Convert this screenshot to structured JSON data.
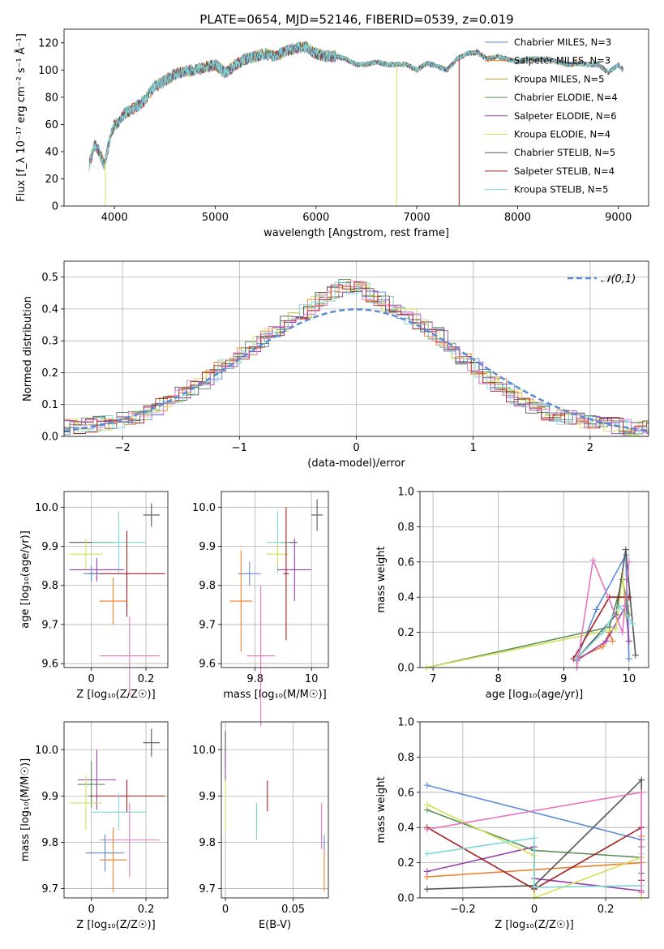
{
  "figure": {
    "title": "PLATE=0654, MJD=52146, FIBERID=0539, z=0.019"
  },
  "chart_data": [
    {
      "id": "spectrum",
      "type": "line",
      "title": "PLATE=0654, MJD=52146, FIBERID=0539, z=0.019",
      "xlabel": "wavelength [Angstrom, rest frame]",
      "ylabel": "Flux [f_λ 10⁻¹⁷ erg cm⁻² s⁻¹ Å⁻¹]",
      "xlim": [
        3500,
        9300
      ],
      "ylim": [
        0,
        130
      ],
      "xticks": [
        4000,
        5000,
        6000,
        7000,
        8000,
        9000
      ],
      "yticks": [
        0,
        20,
        40,
        60,
        80,
        100,
        120
      ],
      "grid": false,
      "legend_position": "right",
      "continuum": {
        "x": [
          3750,
          3800,
          3850,
          3900,
          3950,
          4000,
          4050,
          4100,
          4200,
          4300,
          4400,
          4500,
          4600,
          4700,
          4800,
          4900,
          5000,
          5100,
          5200,
          5300,
          5400,
          5500,
          5600,
          5700,
          5800,
          5900,
          6000,
          6100,
          6200,
          6300,
          6400,
          6500,
          6600,
          6700,
          6800,
          6900,
          7000,
          7100,
          7200,
          7300,
          7400,
          7500,
          7600,
          7700,
          7800,
          7900,
          8000,
          8100,
          8200,
          8300,
          8400,
          8500,
          8600,
          8700,
          8800,
          8900,
          9000,
          9050
        ],
        "y": [
          30,
          45,
          40,
          30,
          48,
          60,
          62,
          68,
          72,
          78,
          88,
          92,
          97,
          99,
          100,
          102,
          104,
          98,
          104,
          108,
          110,
          112,
          110,
          114,
          116,
          117,
          112,
          110,
          110,
          108,
          104,
          104,
          106,
          104,
          104,
          104,
          100,
          105,
          103,
          100,
          108,
          112,
          113,
          108,
          110,
          108,
          106,
          108,
          108,
          108,
          106,
          104,
          105,
          104,
          104,
          98,
          104,
          100
        ]
      },
      "series": [
        {
          "name": "Chabrier MILES, N_SSP=3",
          "color": "#5b8bd6"
        },
        {
          "name": "Salpeter MILES, N_SSP=3",
          "color": "#f07f2a"
        },
        {
          "name": "Kroupa MILES, N_SSP=5",
          "color": "#b8922e"
        },
        {
          "name": "Chabrier ELODIE, N_SSP=4",
          "color": "#5a8f5a"
        },
        {
          "name": "Salpeter ELODIE, N_SSP=6",
          "color": "#9b3fb0"
        },
        {
          "name": "Kroupa ELODIE, N_SSP=4",
          "color": "#d4e157"
        },
        {
          "name": "Chabrier STELIB, N_SSP=5",
          "color": "#555555"
        },
        {
          "name": "Salpeter STELIB, N_SSP=4",
          "color": "#a32020"
        },
        {
          "name": "Kroupa STELIB, N_SSP=5",
          "color": "#7fd6d6"
        }
      ],
      "model_cutoffs": [
        {
          "series": "Kroupa ELODIE, N_SSP=4",
          "x": 3910
        },
        {
          "series": "Kroupa ELODIE, N_SSP=4",
          "x": 6800
        },
        {
          "series": "Salpeter STELIB, N_SSP=4",
          "x": 7420
        }
      ]
    },
    {
      "id": "residuals",
      "type": "line",
      "xlabel": "(data-model)/error",
      "ylabel": "Normed distribution",
      "xlim": [
        -2.5,
        2.5
      ],
      "ylim": [
        0,
        0.55
      ],
      "xticks": [
        -2,
        -1,
        0,
        1,
        2
      ],
      "yticks": [
        0.0,
        0.1,
        0.2,
        0.3,
        0.4,
        0.5
      ],
      "grid": true,
      "legend_position": "top-right",
      "reference": {
        "name": "𝒩(0,1)",
        "color": "#5b8bd6",
        "mu": 0,
        "sigma": 1
      },
      "histogram_envelope": {
        "x": [
          -2.5,
          -2.3,
          -2.1,
          -1.9,
          -1.7,
          -1.5,
          -1.3,
          -1.1,
          -0.9,
          -0.7,
          -0.5,
          -0.3,
          -0.1,
          0.1,
          0.3,
          0.5,
          0.7,
          0.9,
          1.1,
          1.3,
          1.5,
          1.7,
          1.9,
          2.1,
          2.3,
          2.5
        ],
        "y": [
          0.03,
          0.035,
          0.045,
          0.06,
          0.09,
          0.13,
          0.17,
          0.23,
          0.28,
          0.33,
          0.38,
          0.43,
          0.48,
          0.45,
          0.41,
          0.37,
          0.32,
          0.25,
          0.19,
          0.14,
          0.09,
          0.065,
          0.05,
          0.04,
          0.03,
          0.025
        ]
      }
    },
    {
      "id": "age-vs-Z",
      "type": "scatter",
      "xlabel": "Z [log₁₀(Z/Z☉)]",
      "ylabel": "age  [log₁₀(age/yr)]",
      "xlim": [
        -0.1,
        0.28
      ],
      "ylim": [
        9.59,
        10.04
      ],
      "xticks": [
        0.0,
        0.2
      ],
      "yticks": [
        9.6,
        9.7,
        9.8,
        9.9,
        10.0
      ],
      "grid": true,
      "points": [
        {
          "color": "#555555",
          "x": 0.22,
          "y": 9.98,
          "xerr": 0.03,
          "yerr": 0.03
        },
        {
          "color": "#555555",
          "x": 0.0,
          "y": 9.91,
          "xerr": 0.08,
          "yerr": 0.0
        },
        {
          "color": "#7fd6d6",
          "x": 0.1,
          "y": 9.91,
          "xerr": 0.1,
          "yerr": 0.08
        },
        {
          "color": "#d4e157",
          "x": -0.02,
          "y": 9.88,
          "xerr": 0.06,
          "yerr": 0.04
        },
        {
          "color": "#9b3fb0",
          "x": 0.02,
          "y": 9.84,
          "xerr": 0.1,
          "yerr": 0.03
        },
        {
          "color": "#a32020",
          "x": 0.13,
          "y": 9.83,
          "xerr": 0.14,
          "yerr": 0.11
        },
        {
          "color": "#5b8bd6",
          "x": 0.0,
          "y": 9.83,
          "xerr": 0.03,
          "yerr": 0.02
        },
        {
          "color": "#f07f2a",
          "x": 0.08,
          "y": 9.76,
          "xerr": 0.05,
          "yerr": 0.06
        },
        {
          "color": "#e377c2",
          "x": 0.14,
          "y": 9.62,
          "xerr": 0.11,
          "yerr": 0.1
        }
      ]
    },
    {
      "id": "age-vs-mass",
      "type": "scatter",
      "xlabel": "mass [log₁₀(M/M☉)]",
      "ylabel": "",
      "xlim": [
        9.68,
        10.06
      ],
      "ylim": [
        9.59,
        10.04
      ],
      "xticks": [
        9.8,
        10.0
      ],
      "yticks": [
        9.6,
        9.7,
        9.8,
        9.9,
        10.0
      ],
      "grid": true,
      "points": [
        {
          "color": "#555555",
          "x": 10.02,
          "y": 9.98,
          "xerr": 0.02,
          "yerr": 0.04
        },
        {
          "color": "#555555",
          "x": 9.92,
          "y": 9.91,
          "xerr": 0.03,
          "yerr": 0.0
        },
        {
          "color": "#7fd6d6",
          "x": 9.88,
          "y": 9.91,
          "xerr": 0.04,
          "yerr": 0.08
        },
        {
          "color": "#d4e157",
          "x": 9.88,
          "y": 9.88,
          "xerr": 0.04,
          "yerr": 0.03
        },
        {
          "color": "#9b3fb0",
          "x": 9.94,
          "y": 9.84,
          "xerr": 0.06,
          "yerr": 0.08
        },
        {
          "color": "#a32020",
          "x": 9.91,
          "y": 9.83,
          "xerr": 0.01,
          "yerr": 0.17
        },
        {
          "color": "#5b8bd6",
          "x": 9.78,
          "y": 9.83,
          "xerr": 0.04,
          "yerr": 0.03
        },
        {
          "color": "#f07f2a",
          "x": 9.75,
          "y": 9.76,
          "xerr": 0.04,
          "yerr": 0.13
        },
        {
          "color": "#e377c2",
          "x": 9.82,
          "y": 9.62,
          "xerr": 0.05,
          "yerr": 0.18
        }
      ]
    },
    {
      "id": "mass-weight-vs-age",
      "type": "line",
      "xlabel": "age  [log₁₀(age/yr)]",
      "ylabel": "mass weight",
      "xlim": [
        6.8,
        10.3
      ],
      "ylim": [
        0.0,
        1.0
      ],
      "xticks": [
        7,
        8,
        9,
        10
      ],
      "yticks": [
        0.0,
        0.2,
        0.4,
        0.6,
        0.8,
        1.0
      ],
      "grid": true,
      "series": [
        {
          "color": "#5b8bd6",
          "x": [
            9.2,
            9.5,
            9.95,
            10.0
          ],
          "y": [
            0.05,
            0.33,
            0.64,
            0.05
          ]
        },
        {
          "color": "#f07f2a",
          "x": [
            9.2,
            9.6,
            9.7,
            9.75
          ],
          "y": [
            0.05,
            0.12,
            0.2,
            0.15
          ]
        },
        {
          "color": "#9b3fb0",
          "x": [
            9.2,
            9.65,
            9.95,
            10.0
          ],
          "y": [
            0.04,
            0.15,
            0.35,
            0.15
          ]
        },
        {
          "color": "#5a8f5a",
          "x": [
            6.9,
            9.7,
            9.9,
            10.0
          ],
          "y": [
            0.0,
            0.23,
            0.5,
            0.3
          ]
        },
        {
          "color": "#d4e157",
          "x": [
            6.9,
            9.8,
            9.9,
            9.95
          ],
          "y": [
            0.0,
            0.22,
            0.53,
            0.3
          ]
        },
        {
          "color": "#555555",
          "x": [
            9.2,
            9.8,
            9.95,
            10.1
          ],
          "y": [
            0.05,
            0.3,
            0.67,
            0.07
          ]
        },
        {
          "color": "#a32020",
          "x": [
            9.15,
            9.7,
            9.95,
            10.0
          ],
          "y": [
            0.05,
            0.4,
            0.4,
            0.4
          ]
        },
        {
          "color": "#7fd6d6",
          "x": [
            9.2,
            9.6,
            9.85,
            10.05
          ],
          "y": [
            0.05,
            0.2,
            0.35,
            0.25
          ]
        },
        {
          "color": "#e377c2",
          "x": [
            9.2,
            9.45,
            9.9,
            10.0
          ],
          "y": [
            0.0,
            0.61,
            0.2,
            0.6
          ]
        }
      ]
    },
    {
      "id": "mass-vs-Z",
      "type": "scatter",
      "xlabel": "Z [log₁₀(Z/Z☉)]",
      "ylabel": "mass [log₁₀(M/M☉)]",
      "xlim": [
        -0.1,
        0.28
      ],
      "ylim": [
        9.68,
        10.06
      ],
      "xticks": [
        0.0,
        0.2
      ],
      "yticks": [
        9.7,
        9.8,
        9.9,
        10.0
      ],
      "grid": true,
      "points": [
        {
          "color": "#555555",
          "x": 0.22,
          "y": 10.015,
          "xerr": 0.03,
          "yerr": 0.03
        },
        {
          "color": "#9b3fb0",
          "x": 0.02,
          "y": 9.935,
          "xerr": 0.07,
          "yerr": 0.065
        },
        {
          "color": "#5a8f5a",
          "x": 0.0,
          "y": 9.925,
          "xerr": 0.05,
          "yerr": 0.05
        },
        {
          "color": "#a32020",
          "x": 0.13,
          "y": 9.9,
          "xerr": 0.14,
          "yerr": 0.035
        },
        {
          "color": "#d4e157",
          "x": -0.02,
          "y": 9.885,
          "xerr": 0.06,
          "yerr": 0.06
        },
        {
          "color": "#7fd6d6",
          "x": 0.1,
          "y": 9.865,
          "xerr": 0.1,
          "yerr": 0.04
        },
        {
          "color": "#e377c2",
          "x": 0.14,
          "y": 9.805,
          "xerr": 0.11,
          "yerr": 0.08
        },
        {
          "color": "#5b8bd6",
          "x": 0.05,
          "y": 9.777,
          "xerr": 0.07,
          "yerr": 0.04
        },
        {
          "color": "#f07f2a",
          "x": 0.08,
          "y": 9.762,
          "xerr": 0.05,
          "yerr": 0.07
        }
      ]
    },
    {
      "id": "mass-vs-ebv",
      "type": "scatter",
      "xlabel": "E(B-V)",
      "ylabel": "",
      "xlim": [
        -0.003,
        0.076
      ],
      "ylim": [
        9.68,
        10.06
      ],
      "xticks": [
        0.0,
        0.05
      ],
      "yticks": [
        9.7,
        9.8,
        9.9,
        10.0
      ],
      "grid": true,
      "points": [
        {
          "color": "#555555",
          "x": 0.0,
          "y": 10.0,
          "xerr": 0,
          "yerr": 0.04
        },
        {
          "color": "#9b3fb0",
          "x": 0.0,
          "y": 9.965,
          "xerr": 0,
          "yerr": 0.035
        },
        {
          "color": "#d4e157",
          "x": 0.0,
          "y": 9.88,
          "xerr": 0,
          "yerr": 0.055
        },
        {
          "color": "#7fd6d6",
          "x": 0.023,
          "y": 9.845,
          "xerr": 0,
          "yerr": 0.04
        },
        {
          "color": "#a32020",
          "x": 0.031,
          "y": 9.9,
          "xerr": 0,
          "yerr": 0.033
        },
        {
          "color": "#e377c2",
          "x": 0.071,
          "y": 9.835,
          "xerr": 0,
          "yerr": 0.05
        },
        {
          "color": "#5b8bd6",
          "x": 0.073,
          "y": 9.8,
          "xerr": 0,
          "yerr": 0.016
        },
        {
          "color": "#f07f2a",
          "x": 0.073,
          "y": 9.74,
          "xerr": 0,
          "yerr": 0.045
        }
      ]
    },
    {
      "id": "mass-weight-vs-Z",
      "type": "line",
      "xlabel": "Z [log₁₀(Z/Z☉)]",
      "ylabel": "mass weight",
      "xlim": [
        -0.32,
        0.32
      ],
      "ylim": [
        0.0,
        1.0
      ],
      "xticks": [
        -0.2,
        0.0,
        0.2
      ],
      "yticks": [
        0.0,
        0.2,
        0.4,
        0.6,
        0.8,
        1.0
      ],
      "grid": true,
      "series": [
        {
          "color": "#5b8bd6",
          "x": [
            -0.3,
            0.3,
            0.3
          ],
          "y": [
            0.64,
            0.33,
            0.29
          ]
        },
        {
          "color": "#f07f2a",
          "x": [
            -0.3,
            0.0,
            0.3,
            0.3
          ],
          "y": [
            0.12,
            0.16,
            0.2,
            0.35
          ]
        },
        {
          "color": "#9b3fb0",
          "x": [
            -0.3,
            0.0,
            0.0,
            0.3
          ],
          "y": [
            0.15,
            0.29,
            0.11,
            0.04
          ]
        },
        {
          "color": "#5a8f5a",
          "x": [
            -0.3,
            0.0,
            0.3
          ],
          "y": [
            0.5,
            0.27,
            0.23
          ]
        },
        {
          "color": "#d4e157",
          "x": [
            -0.3,
            0.0,
            0.0,
            0.3,
            0.3
          ],
          "y": [
            0.53,
            0.24,
            0.0,
            0.23,
            0.0
          ]
        },
        {
          "color": "#555555",
          "x": [
            -0.3,
            0.0,
            0.3,
            0.3
          ],
          "y": [
            0.05,
            0.07,
            0.67,
            0.14
          ]
        },
        {
          "color": "#a32020",
          "x": [
            -0.3,
            0.0,
            0.3,
            0.3
          ],
          "y": [
            0.4,
            0.05,
            0.4,
            0.1
          ]
        },
        {
          "color": "#7fd6d6",
          "x": [
            -0.3,
            0.0,
            0.0,
            0.3,
            0.3
          ],
          "y": [
            0.25,
            0.34,
            0.06,
            0.07,
            0.25
          ]
        },
        {
          "color": "#e377c2",
          "x": [
            -0.3,
            0.3,
            0.3
          ],
          "y": [
            0.39,
            0.6,
            0.03
          ]
        }
      ]
    }
  ]
}
